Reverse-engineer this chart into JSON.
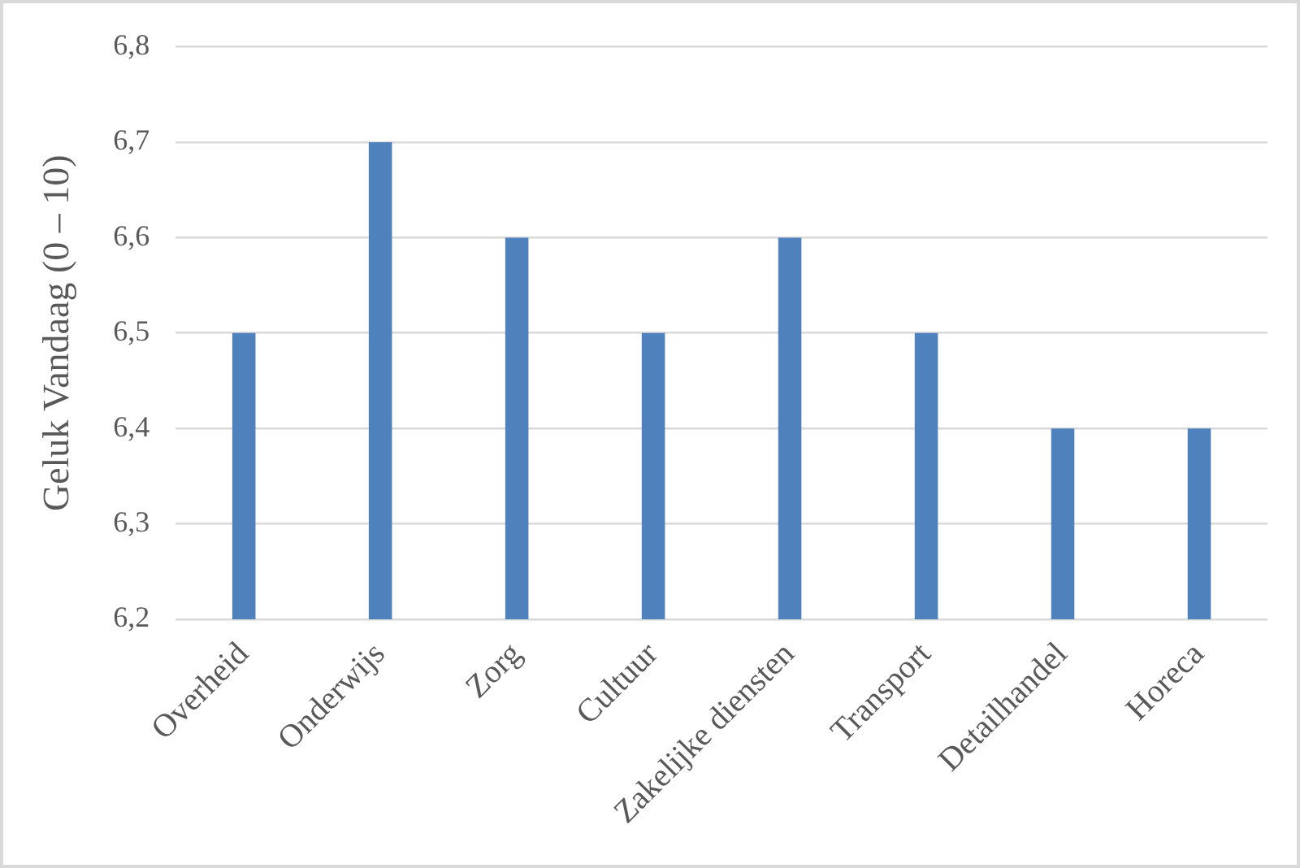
{
  "chart_data": {
    "type": "bar",
    "ylabel": "Geluk Vandaag (0 – 10)",
    "categories": [
      "Overheid",
      "Onderwijs",
      "Zorg",
      "Cultuur",
      "Zakelijke diensten",
      "Transport",
      "Detailhandel",
      "Horeca"
    ],
    "values": [
      6.5,
      6.7,
      6.6,
      6.5,
      6.6,
      6.5,
      6.4,
      6.4
    ],
    "color": "#4f81bd",
    "ylim": [
      6.2,
      6.8
    ],
    "yticks": [
      {
        "value": 6.2,
        "label": "6,2"
      },
      {
        "value": 6.3,
        "label": "6,3"
      },
      {
        "value": 6.4,
        "label": "6,4"
      },
      {
        "value": 6.5,
        "label": "6,5"
      },
      {
        "value": 6.6,
        "label": "6,6"
      },
      {
        "value": 6.7,
        "label": "6,7"
      },
      {
        "value": 6.8,
        "label": "6,8"
      }
    ],
    "grid": "y",
    "legend": false
  }
}
